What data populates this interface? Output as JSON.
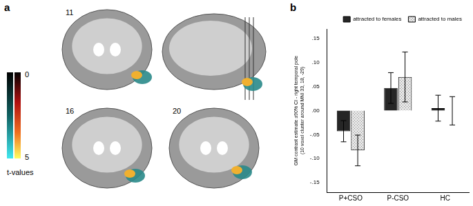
{
  "panel_a": {
    "label": "a",
    "slice_labels": [
      "11",
      "16",
      "20"
    ],
    "colorbar": {
      "label": "t-values",
      "range": [
        0,
        5
      ]
    }
  },
  "panel_b_label": "b",
  "chart_data": {
    "type": "bar",
    "categories": [
      "P+CSO",
      "P-CSO",
      "HC"
    ],
    "y_label": [
      "GM contrast estimate ±90% CI - right temporal pole",
      "(10 voxel cluster around MNI 33, 18, -29)"
    ],
    "series": [
      {
        "name": "attracted to females",
        "color": "#262626",
        "values": [
          -0.043,
          0.047,
          0.005
        ],
        "ci": [
          [
            -0.065,
            -0.021
          ],
          [
            0.015,
            0.079
          ],
          [
            -0.022,
            0.032
          ]
        ]
      },
      {
        "name": "attracted to males",
        "color": "#e6e6e6",
        "values": [
          -0.083,
          0.07,
          0.0
        ],
        "ci": [
          [
            -0.115,
            -0.051
          ],
          [
            0.018,
            0.122
          ],
          [
            -0.03,
            0.029
          ]
        ]
      }
    ],
    "ylim": [
      -0.17,
      0.17
    ],
    "yticks": [
      {
        "value": -0.15,
        "label": "-.15"
      },
      {
        "value": -0.1,
        "label": "-.10"
      },
      {
        "value": -0.05,
        "label": "-.05"
      },
      {
        "value": 0,
        "label": ".00"
      },
      {
        "value": 0.05,
        "label": ".05"
      },
      {
        "value": 0.1,
        "label": ".10"
      },
      {
        "value": 0.15,
        "label": ".15"
      }
    ],
    "grid": false,
    "legend": "top-right"
  }
}
